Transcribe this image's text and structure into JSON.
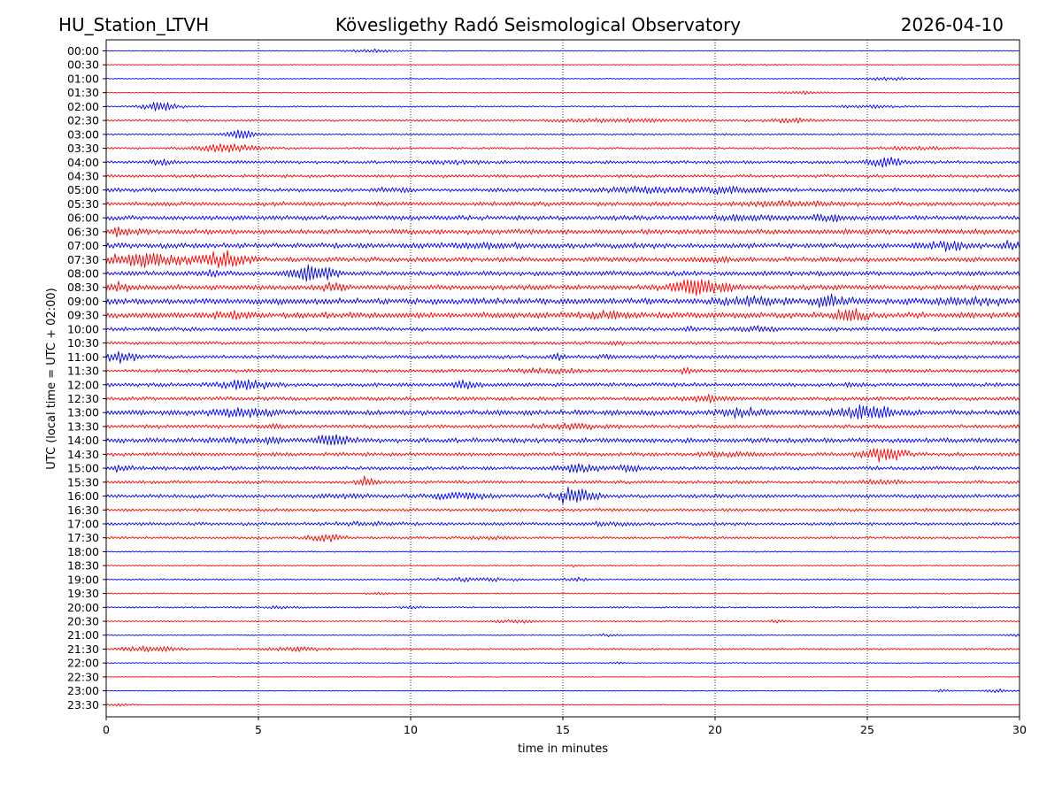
{
  "header": {
    "station": "HU_Station_LTVH",
    "observatory": "Kövesligethy Radó Seismological Observatory",
    "date": "2026-04-10"
  },
  "chart_data": {
    "type": "seismogram_helicorder",
    "xlabel": "time in minutes",
    "ylabel": "UTC (local time = UTC + 02:00)",
    "xlim": [
      0,
      30
    ],
    "x_ticks": [
      0,
      5,
      10,
      15,
      20,
      25,
      30
    ],
    "x_tick_labels": [
      "0",
      "5",
      "10",
      "15",
      "20",
      "25",
      "30"
    ],
    "vertical_gridlines_at_minutes": [
      5,
      10,
      15,
      20,
      25
    ],
    "trace_colors": [
      "#0000ff",
      "#ff0000"
    ],
    "rows": [
      {
        "label": "00:00",
        "noise": 0.12,
        "bursts": [
          [
            8.7,
            0.45,
            0.9
          ]
        ]
      },
      {
        "label": "00:30",
        "noise": 0.12,
        "bursts": [
          [
            21.5,
            0.2,
            1.0
          ]
        ]
      },
      {
        "label": "01:00",
        "noise": 0.15,
        "bursts": [
          [
            25.8,
            0.45,
            0.9
          ]
        ]
      },
      {
        "label": "01:30",
        "noise": 0.15,
        "bursts": [
          [
            22.8,
            0.35,
            0.8
          ]
        ]
      },
      {
        "label": "02:00",
        "noise": 0.2,
        "bursts": [
          [
            1.8,
            1.3,
            0.6
          ],
          [
            25.0,
            0.4,
            1.0
          ]
        ]
      },
      {
        "label": "02:30",
        "noise": 0.3,
        "bursts": [
          [
            17.0,
            0.4,
            2.5
          ],
          [
            22.5,
            0.5,
            0.8
          ]
        ]
      },
      {
        "label": "03:00",
        "noise": 0.25,
        "bursts": [
          [
            4.4,
            1.5,
            0.5
          ]
        ]
      },
      {
        "label": "03:30",
        "noise": 0.3,
        "bursts": [
          [
            4.0,
            1.2,
            1.0
          ],
          [
            26.4,
            0.4,
            1.0
          ]
        ]
      },
      {
        "label": "04:00",
        "noise": 0.45,
        "bursts": [
          [
            1.8,
            0.7,
            0.4
          ],
          [
            25.6,
            1.4,
            0.5
          ],
          [
            11.5,
            0.3,
            1.0
          ]
        ]
      },
      {
        "label": "04:30",
        "noise": 0.45,
        "bursts": []
      },
      {
        "label": "05:00",
        "noise": 0.55,
        "bursts": [
          [
            17.8,
            0.8,
            1.5
          ],
          [
            20.7,
            0.9,
            1.0
          ],
          [
            9.5,
            0.5,
            0.5
          ]
        ]
      },
      {
        "label": "05:30",
        "noise": 0.6,
        "bursts": [
          [
            22.5,
            0.5,
            1.5
          ]
        ]
      },
      {
        "label": "06:00",
        "noise": 0.7,
        "bursts": [
          [
            21.0,
            0.7,
            1.0
          ],
          [
            23.6,
            0.7,
            0.5
          ]
        ]
      },
      {
        "label": "06:30",
        "noise": 0.75,
        "bursts": [
          [
            0.5,
            0.8,
            0.6
          ]
        ]
      },
      {
        "label": "07:00",
        "noise": 0.75,
        "bursts": [
          [
            27.6,
            0.8,
            0.8
          ],
          [
            29.7,
            0.8,
            0.3
          ],
          [
            12.5,
            0.4,
            1.2
          ]
        ]
      },
      {
        "label": "07:30",
        "noise": 0.7,
        "bursts": [
          [
            1.2,
            1.8,
            1.2
          ],
          [
            3.8,
            2.0,
            0.8
          ],
          [
            20.0,
            0.5,
            0.5
          ]
        ]
      },
      {
        "label": "08:00",
        "noise": 0.7,
        "bursts": [
          [
            6.8,
            2.3,
            0.7
          ],
          [
            3.5,
            0.6,
            0.3
          ]
        ]
      },
      {
        "label": "08:30",
        "noise": 0.75,
        "bursts": [
          [
            19.5,
            2.2,
            0.9
          ],
          [
            7.5,
            0.8,
            0.4
          ],
          [
            0.4,
            0.8,
            0.5
          ]
        ]
      },
      {
        "label": "09:00",
        "noise": 0.9,
        "bursts": [
          [
            23.8,
            1.3,
            0.6
          ],
          [
            21.2,
            0.7,
            1.0
          ],
          [
            28.5,
            0.5,
            1.5
          ]
        ]
      },
      {
        "label": "09:30",
        "noise": 0.85,
        "bursts": [
          [
            24.4,
            1.4,
            0.5
          ],
          [
            16.5,
            0.5,
            1.0
          ],
          [
            4.0,
            0.4,
            1.0
          ]
        ]
      },
      {
        "label": "10:00",
        "noise": 0.55,
        "bursts": [
          [
            19.2,
            0.6,
            0.2
          ],
          [
            21.5,
            0.5,
            0.8
          ]
        ]
      },
      {
        "label": "10:30",
        "noise": 0.45,
        "bursts": [
          [
            29.5,
            0.4,
            0.5
          ],
          [
            16.8,
            0.4,
            0.3
          ]
        ]
      },
      {
        "label": "11:00",
        "noise": 0.55,
        "bursts": [
          [
            0.5,
            1.4,
            0.5
          ],
          [
            14.8,
            0.6,
            0.3
          ],
          [
            16.5,
            0.5,
            0.3
          ]
        ]
      },
      {
        "label": "11:30",
        "noise": 0.5,
        "bursts": [
          [
            19.0,
            0.6,
            0.3
          ],
          [
            14.5,
            0.5,
            1.0
          ]
        ]
      },
      {
        "label": "12:00",
        "noise": 0.55,
        "bursts": [
          [
            4.6,
            1.2,
            0.8
          ],
          [
            11.8,
            0.9,
            0.4
          ],
          [
            24.5,
            0.4,
            0.3
          ]
        ]
      },
      {
        "label": "12:30",
        "noise": 0.55,
        "bursts": [
          [
            19.7,
            0.8,
            0.6
          ]
        ]
      },
      {
        "label": "13:00",
        "noise": 0.8,
        "bursts": [
          [
            25.0,
            1.4,
            1.0
          ],
          [
            21.0,
            1.0,
            0.6
          ],
          [
            4.5,
            0.8,
            1.0
          ]
        ]
      },
      {
        "label": "13:30",
        "noise": 0.55,
        "bursts": [
          [
            15.3,
            0.5,
            1.2
          ],
          [
            5.5,
            0.5,
            0.3
          ]
        ]
      },
      {
        "label": "14:00",
        "noise": 0.7,
        "bursts": [
          [
            7.5,
            1.5,
            0.5
          ],
          [
            5.5,
            1.0,
            0.3
          ],
          [
            4.0,
            0.5,
            0.8
          ]
        ]
      },
      {
        "label": "14:30",
        "noise": 0.55,
        "bursts": [
          [
            25.5,
            1.8,
            0.7
          ],
          [
            20.5,
            0.4,
            1.0
          ]
        ]
      },
      {
        "label": "15:00",
        "noise": 0.55,
        "bursts": [
          [
            15.5,
            0.8,
            0.8
          ],
          [
            17.2,
            0.8,
            0.4
          ],
          [
            0.5,
            0.6,
            0.4
          ]
        ]
      },
      {
        "label": "15:30",
        "noise": 0.45,
        "bursts": [
          [
            8.6,
            1.3,
            0.3
          ],
          [
            25.5,
            0.6,
            0.6
          ]
        ]
      },
      {
        "label": "16:00",
        "noise": 0.55,
        "bursts": [
          [
            15.4,
            2.5,
            0.6
          ],
          [
            11.5,
            0.8,
            1.0
          ],
          [
            7.8,
            0.4,
            0.8
          ]
        ]
      },
      {
        "label": "16:30",
        "noise": 0.45,
        "bursts": []
      },
      {
        "label": "17:00",
        "noise": 0.45,
        "bursts": [
          [
            16.5,
            0.4,
            0.8
          ],
          [
            8.5,
            0.4,
            1.0
          ]
        ]
      },
      {
        "label": "17:30",
        "noise": 0.35,
        "bursts": [
          [
            7.2,
            0.9,
            0.6
          ],
          [
            12.5,
            0.3,
            0.8
          ]
        ]
      },
      {
        "label": "18:00",
        "noise": 0.18,
        "bursts": []
      },
      {
        "label": "18:30",
        "noise": 0.18,
        "bursts": [
          [
            15.3,
            0.25,
            0.3
          ]
        ]
      },
      {
        "label": "19:00",
        "noise": 0.22,
        "bursts": [
          [
            12.0,
            0.5,
            1.5
          ],
          [
            15.5,
            0.4,
            0.5
          ]
        ]
      },
      {
        "label": "19:30",
        "noise": 0.18,
        "bursts": [
          [
            9.0,
            0.25,
            0.5
          ]
        ]
      },
      {
        "label": "20:00",
        "noise": 0.22,
        "bursts": [
          [
            10.0,
            0.4,
            0.3
          ],
          [
            5.8,
            0.3,
            0.5
          ]
        ]
      },
      {
        "label": "20:30",
        "noise": 0.2,
        "bursts": [
          [
            13.5,
            0.4,
            0.8
          ],
          [
            22.0,
            0.3,
            0.3
          ]
        ]
      },
      {
        "label": "21:00",
        "noise": 0.15,
        "bursts": [
          [
            16.5,
            0.3,
            0.5
          ],
          [
            29.8,
            0.3,
            0.3
          ]
        ]
      },
      {
        "label": "21:30",
        "noise": 0.28,
        "bursts": [
          [
            1.5,
            0.8,
            1.0
          ],
          [
            6.2,
            0.6,
            0.8
          ]
        ]
      },
      {
        "label": "22:00",
        "noise": 0.15,
        "bursts": [
          [
            16.8,
            0.3,
            0.2
          ]
        ]
      },
      {
        "label": "22:30",
        "noise": 0.1,
        "bursts": []
      },
      {
        "label": "23:00",
        "noise": 0.12,
        "bursts": [
          [
            29.3,
            0.5,
            0.5
          ],
          [
            27.5,
            0.3,
            0.3
          ]
        ]
      },
      {
        "label": "23:30",
        "noise": 0.1,
        "bursts": [
          [
            0.4,
            0.4,
            0.5
          ]
        ]
      }
    ]
  }
}
